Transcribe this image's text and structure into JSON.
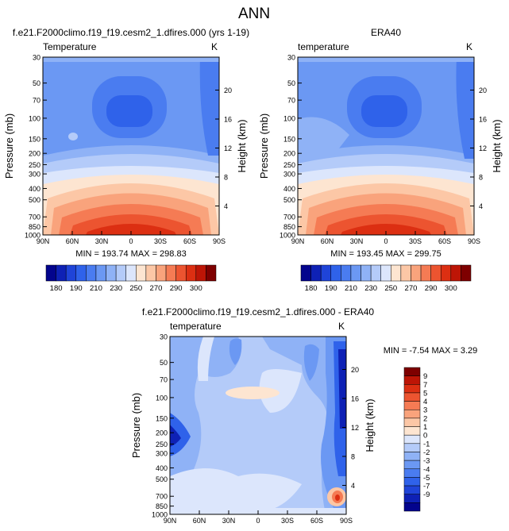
{
  "page": {
    "title": "ANN"
  },
  "panels": [
    {
      "title": "f.e21.F2000climo.f19_f19.cesm2_1.dfires.000 (yrs 1-19)",
      "subtitle_left": "Temperature",
      "subtitle_right": "K",
      "y_label": "Pressure (mb)",
      "y2_label": "Height (km)",
      "stats": "MIN = 193.74  MAX = 298.83"
    },
    {
      "title": "ERA40",
      "subtitle_left": "temperature",
      "subtitle_right": "K",
      "y_label": "Pressure (mb)",
      "y2_label": "Height (km)",
      "stats": "MIN = 193.45  MAX = 299.75"
    },
    {
      "title": "f.e21.F2000climo.f19_f19.cesm2_1.dfires.000 - ERA40",
      "subtitle_left": "temperature",
      "subtitle_right": "K",
      "y_label": "Pressure (mb)",
      "y2_label": "Height (km)",
      "stats": "MIN = -7.54  MAX =  3.29"
    }
  ],
  "colorbars": {
    "abs": {
      "colors": [
        "#03048d",
        "#0e21b5",
        "#1f44d8",
        "#2f62ea",
        "#4a7cf0",
        "#6b98f3",
        "#8fb2f6",
        "#b4cbf9",
        "#dce6fc",
        "#fde5d1",
        "#fcc7a6",
        "#f9a37c",
        "#f57b54",
        "#ec5430",
        "#dc2f12",
        "#bd1506",
        "#7e0000"
      ],
      "labels": [
        "180",
        "190",
        "210",
        "230",
        "250",
        "270",
        "290",
        "300"
      ]
    },
    "diff": {
      "colors": [
        "#03048d",
        "#0e21b5",
        "#1f44d8",
        "#2f62ea",
        "#4a7cf0",
        "#6b98f3",
        "#8fb2f6",
        "#b4cbf9",
        "#dce6fc",
        "#fde5d1",
        "#fcc7a6",
        "#f9a37c",
        "#f57b54",
        "#ec5430",
        "#dc2f12",
        "#bd1506",
        "#7e0000"
      ],
      "labels": [
        "-9",
        "-7",
        "-5",
        "-4",
        "-3",
        "-2",
        "-1",
        "0",
        "1",
        "2",
        "3",
        "4",
        "5",
        "7",
        "9"
      ]
    }
  },
  "chart_data": [
    {
      "type": "heatmap",
      "title": "f.e21.F2000climo.f19_f19.cesm2_1.dfires.000 (yrs 1-19)",
      "field": "Temperature",
      "units": "K",
      "x_ticks": [
        "90N",
        "60N",
        "30N",
        "0",
        "30S",
        "60S",
        "90S"
      ],
      "y_ticks": [
        "30",
        "50",
        "70",
        "100",
        "150",
        "200",
        "250",
        "300",
        "400",
        "500",
        "700",
        "850",
        "1000"
      ],
      "y2_ticks": [
        "20",
        "16",
        "12",
        "8",
        "4"
      ],
      "ylabel": "Pressure (mb)",
      "y2label": "Height (km)",
      "min": 193.74,
      "max": 298.83
    },
    {
      "type": "heatmap",
      "title": "ERA40",
      "field": "temperature",
      "units": "K",
      "x_ticks": [
        "90N",
        "60N",
        "30N",
        "0",
        "30S",
        "60S",
        "90S"
      ],
      "y_ticks": [
        "30",
        "50",
        "70",
        "100",
        "150",
        "200",
        "250",
        "300",
        "400",
        "500",
        "700",
        "850",
        "1000"
      ],
      "y2_ticks": [
        "20",
        "16",
        "12",
        "8",
        "4"
      ],
      "ylabel": "Pressure (mb)",
      "y2label": "Height (km)",
      "min": 193.45,
      "max": 299.75
    },
    {
      "type": "heatmap",
      "title": "f.e21.F2000climo.f19_f19.cesm2_1.dfires.000 - ERA40",
      "field": "temperature",
      "units": "K",
      "x_ticks": [
        "90N",
        "60N",
        "30N",
        "0",
        "30S",
        "60S",
        "90S"
      ],
      "y_ticks": [
        "30",
        "50",
        "70",
        "100",
        "150",
        "200",
        "250",
        "300",
        "400",
        "500",
        "700",
        "850",
        "1000"
      ],
      "y2_ticks": [
        "20",
        "16",
        "12",
        "8",
        "4"
      ],
      "ylabel": "Pressure (mb)",
      "y2label": "Height (km)",
      "min": -7.54,
      "max": 3.29
    }
  ]
}
